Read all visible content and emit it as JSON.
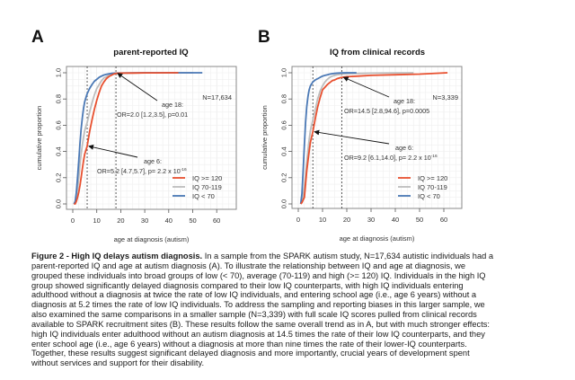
{
  "chart_data": [
    {
      "panel_label": "A",
      "type": "line",
      "title": "parent-reported IQ",
      "xlabel": "age at diagnosis (autism)",
      "ylabel": "cumulative proportion",
      "xlim": [
        0,
        65
      ],
      "ylim": [
        0,
        1.0
      ],
      "xticks": [
        "0",
        "10",
        "20",
        "30",
        "40",
        "50",
        "60"
      ],
      "xtick_values": [
        0,
        10,
        20,
        30,
        40,
        50,
        60
      ],
      "yticks": [
        "0.0",
        "0.2",
        "0.4",
        "0.6",
        "0.8",
        "1.0"
      ],
      "ytick_values": [
        0,
        0.2,
        0.4,
        0.6,
        0.8,
        1.0
      ],
      "grid": true,
      "legend_position": "bottom-right",
      "sample_label": "N=17,634",
      "vlines": [
        6,
        18
      ],
      "annotations": [
        {
          "id": "age18",
          "title": "age 18:",
          "text": "OR=2.0 [1.2,3.5], p=0.01",
          "arrow_to": [
            18,
            0.995
          ]
        },
        {
          "id": "age6",
          "title": "age 6:",
          "text": "OR=5.2 [4.7,5.7], p= 2.2 x 10",
          "sup": "-16",
          "arrow_to": [
            6,
            0.44
          ]
        }
      ],
      "series": [
        {
          "name": "IQ >= 120",
          "color": "#E8502F",
          "x": [
            0.5,
            1,
            1.5,
            2,
            2.5,
            3,
            3.5,
            4,
            4.5,
            5,
            6,
            7,
            8,
            9,
            10,
            11,
            12,
            13,
            14,
            15,
            16,
            17,
            18,
            20,
            25,
            30,
            35,
            40,
            44
          ],
          "y": [
            0.0,
            0.0,
            0.02,
            0.05,
            0.09,
            0.14,
            0.2,
            0.27,
            0.33,
            0.38,
            0.44,
            0.55,
            0.64,
            0.72,
            0.79,
            0.85,
            0.9,
            0.93,
            0.955,
            0.97,
            0.98,
            0.99,
            0.995,
            0.997,
            0.998,
            0.999,
            0.999,
            1.0,
            1.0
          ]
        },
        {
          "name": "IQ 70-119",
          "color": "#BDBDBD",
          "x": [
            0.5,
            1,
            1.5,
            2,
            2.5,
            3,
            3.5,
            4,
            4.5,
            5,
            6,
            7,
            8,
            9,
            10,
            11,
            12,
            13,
            14,
            15,
            16,
            18,
            20,
            25,
            30,
            40,
            50
          ],
          "y": [
            0.0,
            0.01,
            0.05,
            0.11,
            0.2,
            0.3,
            0.38,
            0.45,
            0.51,
            0.56,
            0.62,
            0.7,
            0.77,
            0.83,
            0.88,
            0.91,
            0.94,
            0.96,
            0.97,
            0.98,
            0.987,
            0.995,
            0.997,
            0.998,
            0.999,
            1.0,
            1.0
          ]
        },
        {
          "name": "IQ < 70",
          "color": "#4A78B5",
          "x": [
            0.5,
            1,
            1.5,
            2,
            2.5,
            3,
            3.5,
            4,
            4.5,
            5,
            6,
            7,
            8,
            9,
            10,
            11,
            12,
            13,
            14,
            15,
            16,
            18,
            20,
            25,
            30,
            40,
            54
          ],
          "y": [
            0.0,
            0.02,
            0.09,
            0.2,
            0.33,
            0.46,
            0.57,
            0.66,
            0.73,
            0.78,
            0.84,
            0.88,
            0.91,
            0.935,
            0.95,
            0.965,
            0.975,
            0.983,
            0.988,
            0.992,
            0.995,
            0.997,
            0.998,
            0.999,
            1.0,
            1.0,
            1.0
          ]
        }
      ]
    },
    {
      "panel_label": "B",
      "type": "line",
      "title": "IQ from clinical records",
      "xlabel": "age at diagnosis (autism)",
      "ylabel": "cumulative proportion",
      "xlim": [
        0,
        65
      ],
      "ylim": [
        0,
        1.0
      ],
      "xticks": [
        "0",
        "10",
        "20",
        "30",
        "40",
        "50",
        "60"
      ],
      "xtick_values": [
        0,
        10,
        20,
        30,
        40,
        50,
        60
      ],
      "yticks": [
        "0.0",
        "0.2",
        "0.4",
        "0.6",
        "0.8",
        "1.0"
      ],
      "ytick_values": [
        0,
        0.2,
        0.4,
        0.6,
        0.8,
        1.0
      ],
      "grid": true,
      "legend_position": "bottom-right",
      "sample_label": "N=3,339",
      "vlines": [
        6,
        18
      ],
      "annotations": [
        {
          "id": "age18",
          "title": "age 18:",
          "text": "OR=14.5 [2.8,94.6], p=0.0005",
          "arrow_to": [
            18,
            0.965
          ]
        },
        {
          "id": "age6",
          "title": "age 6:",
          "text": "OR=9.2 [6.1,14.0], p= 2.2 x 10",
          "sup": "-16",
          "arrow_to": [
            6,
            0.55
          ]
        }
      ],
      "series": [
        {
          "name": "IQ >= 120",
          "color": "#E8502F",
          "x": [
            1,
            1.5,
            2,
            2.5,
            3,
            3.5,
            4,
            4.5,
            5,
            6,
            7,
            8,
            9,
            10,
            11,
            12,
            13,
            14,
            15,
            16,
            17,
            18,
            20,
            25,
            30,
            40,
            50,
            61.5
          ],
          "y": [
            0.0,
            0.01,
            0.03,
            0.05,
            0.15,
            0.25,
            0.33,
            0.4,
            0.47,
            0.55,
            0.65,
            0.74,
            0.81,
            0.87,
            0.89,
            0.91,
            0.925,
            0.94,
            0.945,
            0.955,
            0.96,
            0.965,
            0.97,
            0.975,
            0.98,
            0.985,
            0.99,
            1.0
          ]
        },
        {
          "name": "IQ 70-119",
          "color": "#BDBDBD",
          "x": [
            1,
            1.5,
            2,
            2.5,
            3,
            3.5,
            4,
            4.5,
            5,
            6,
            7,
            8,
            9,
            10,
            11,
            12,
            13,
            14,
            15,
            16,
            18,
            20,
            25,
            30,
            40,
            47.5
          ],
          "y": [
            0.0,
            0.02,
            0.06,
            0.13,
            0.22,
            0.32,
            0.41,
            0.49,
            0.56,
            0.64,
            0.72,
            0.8,
            0.86,
            0.9,
            0.93,
            0.95,
            0.965,
            0.975,
            0.98,
            0.985,
            0.99,
            0.993,
            0.995,
            0.997,
            0.999,
            1.0
          ]
        },
        {
          "name": "IQ < 70",
          "color": "#4A78B5",
          "x": [
            1,
            1.5,
            2,
            2.5,
            3,
            3.5,
            4,
            4.5,
            5,
            6,
            7,
            8,
            9,
            10,
            11,
            12,
            13,
            14,
            15,
            16,
            18,
            20,
            24
          ],
          "y": [
            0.0,
            0.08,
            0.25,
            0.45,
            0.62,
            0.74,
            0.82,
            0.87,
            0.9,
            0.93,
            0.945,
            0.955,
            0.965,
            0.975,
            0.98,
            0.985,
            0.99,
            0.993,
            0.995,
            0.997,
            0.999,
            1.0,
            1.0
          ]
        }
      ]
    }
  ],
  "caption": {
    "lines": [
      {
        "bold": "Figure 2 - High IQ delays autism diagnosis.",
        "text": " In a sample from the SPARK autism study, N=17,634 autistic individuals had a"
      },
      {
        "bold": "",
        "text": "parent-reported IQ and age at autism diagnosis (A). To illustrate the relationship between IQ and age at diagnosis, we"
      },
      {
        "bold": "",
        "text": "grouped these individuals into broad groups of low (< 70), average (70-119) and high (>= 120) IQ. Individuals in the high IQ"
      },
      {
        "bold": "",
        "text": "group showed significantly delayed diagnosis compared to their low IQ counterparts, with high IQ individuals entering"
      },
      {
        "bold": "",
        "text": "adulthood without a diagnosis at twice the rate of low IQ individuals, and entering school age (i.e., age 6 years) without a"
      },
      {
        "bold": "",
        "text": "diagnosis at 5.2 times the rate of low IQ individuals. To address the sampling and reporting biases in this larger sample, we"
      },
      {
        "bold": "",
        "text": "also examined the same comparisons in a smaller sample (N=3,339) with full scale IQ scores pulled from clinical records"
      },
      {
        "bold": "",
        "text": "available to SPARK recruitment sites (B). These results follow the same overall trend as in A, but with much stronger effects:"
      },
      {
        "bold": "",
        "text": "high IQ individuals enter adulthood without an autism diagnosis at 14.5 times the rate of their low IQ counterparts, and they"
      },
      {
        "bold": "",
        "text": "enter school age (i.e., age 6 years) without a diagnosis at more than nine times the rate of their lower-IQ counterparts."
      },
      {
        "bold": "",
        "text": "Together, these results suggest significant delayed diagnosis and more importantly, crucial years of development spent"
      },
      {
        "bold": "",
        "text": "without services and support for their disability."
      }
    ]
  }
}
